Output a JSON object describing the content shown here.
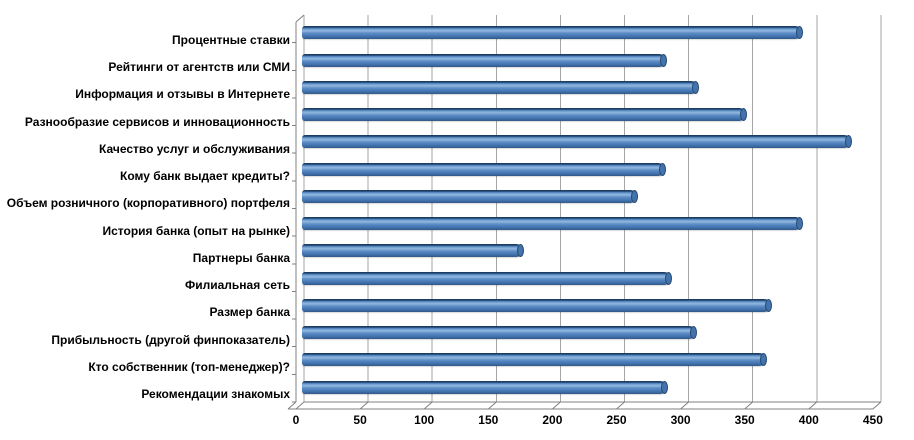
{
  "chart_data": {
    "type": "bar",
    "orientation": "horizontal",
    "style": "3d-cylinder",
    "title": "",
    "xlabel": "",
    "ylabel": "",
    "categories": [
      "Процентные ставки",
      "Рейтинги от агентств или СМИ",
      "Информация и отзывы в Интернете",
      "Разнообразие сервисов и инновационность",
      "Качество услуг и обслуживания",
      "Кому банк выдает кредиты?",
      "Объем розничного (корпоративного) портфеля",
      "История банка (опыт на рынке)",
      "Партнеры банка",
      "Филиальная сеть",
      "Размер банка",
      "Прибыльность (другой финпоказатель)",
      "Кто собственник (топ-менеджер)?",
      "Рекомендации знакомых"
    ],
    "values": [
      390,
      284,
      309,
      346,
      428,
      283,
      261,
      390,
      172,
      288,
      366,
      307,
      362,
      285
    ],
    "xlim": [
      0,
      450
    ],
    "x_tick_step": 50,
    "x_tick_labels": [
      "0",
      "50",
      "100",
      "150",
      "200",
      "250",
      "300",
      "350",
      "400",
      "450"
    ],
    "grid": true,
    "legend": false,
    "colors": {
      "bar_body": "#4f81bd",
      "bar_top_edge": "#1c3d63",
      "bar_highlight": "#8fb6e0",
      "bar_cap": "#4373ad",
      "bar_cap_outline": "#26496f",
      "gridline": "#a6a6a6",
      "axis": "#808080",
      "text": "#000000",
      "background": "#ffffff"
    }
  }
}
